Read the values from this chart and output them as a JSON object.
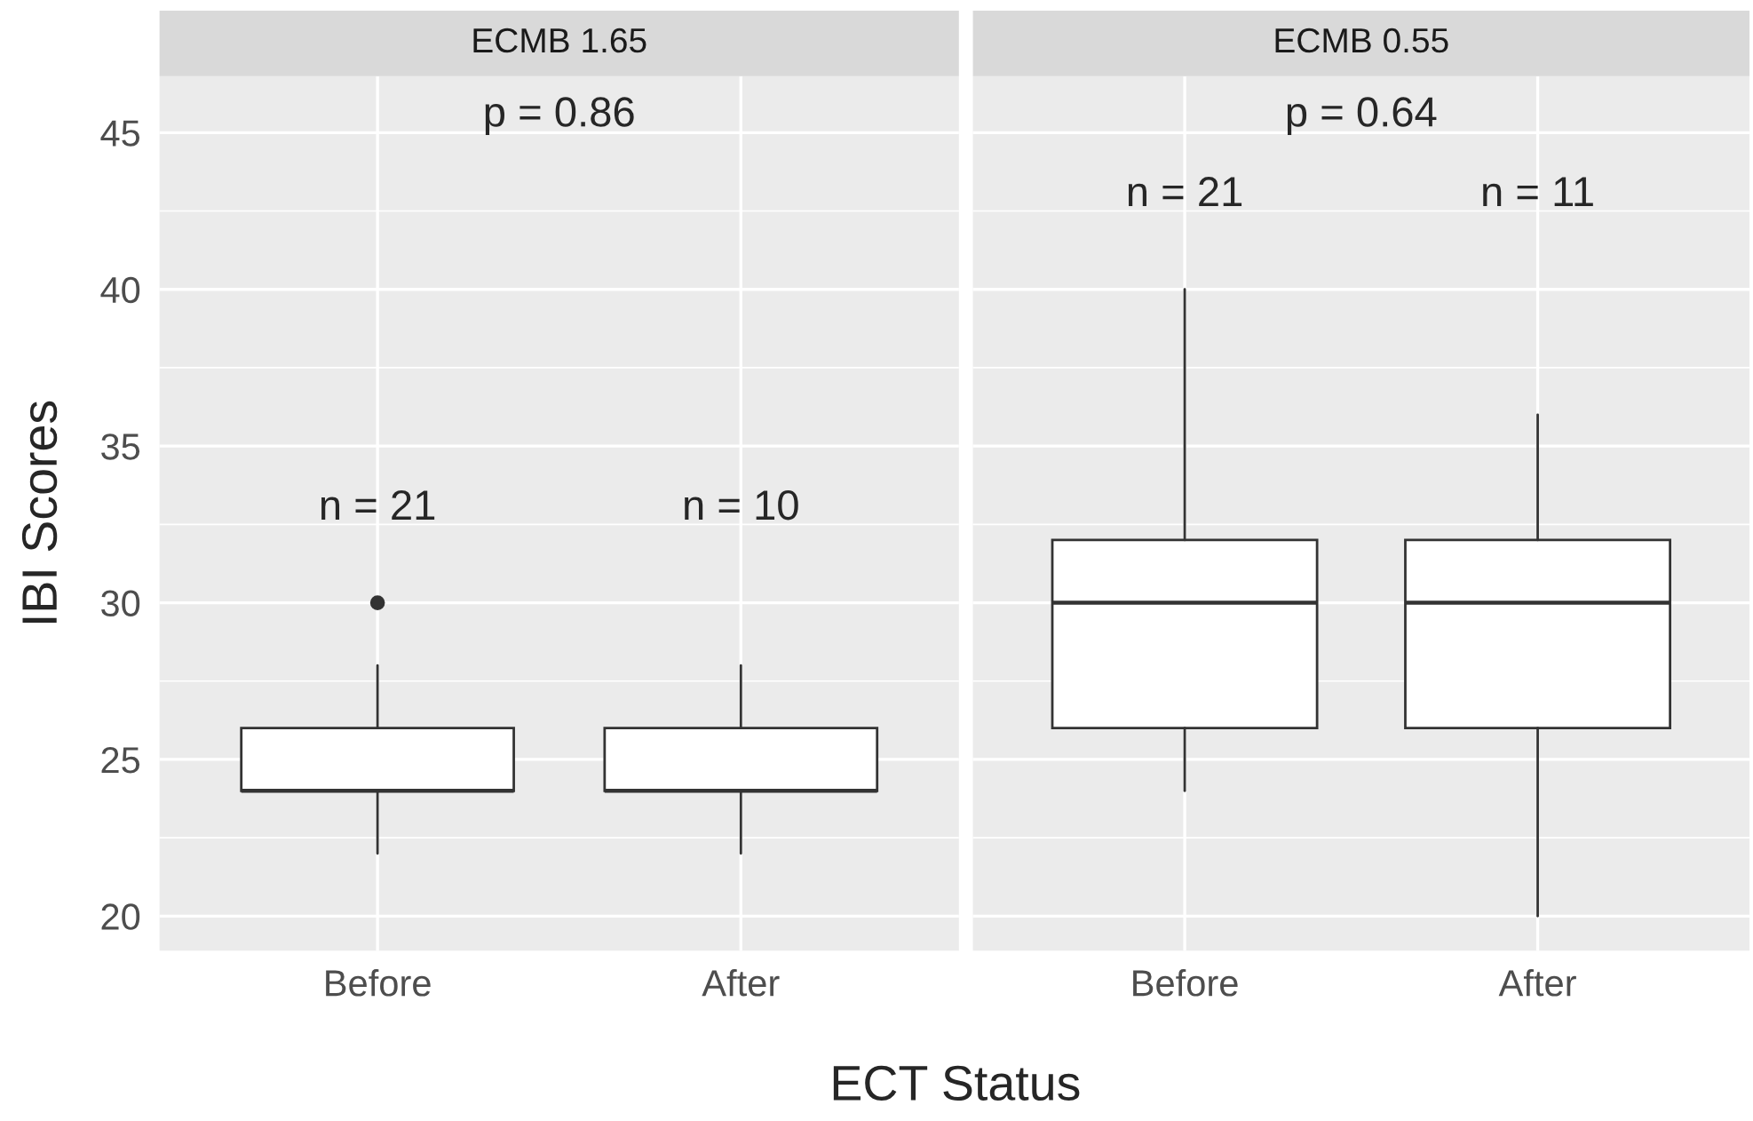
{
  "chart_data": [
    {
      "type": "box",
      "title": "ECMB 1.65",
      "xlabel": "ECT Status",
      "ylabel": "IBI Scores",
      "categories": [
        "Before",
        "After"
      ],
      "boxes": [
        {
          "low": 22,
          "q1": 24,
          "median": 24,
          "q3": 26,
          "high": 28,
          "outliers": [
            30
          ]
        },
        {
          "low": 22,
          "q1": 24,
          "median": 24,
          "q3": 26,
          "high": 28
        }
      ],
      "ylim": [
        18.9,
        46.8
      ],
      "yticks": [
        20,
        25,
        30,
        35,
        40,
        45
      ],
      "grid": true,
      "annotations": [
        "p = 0.86",
        "n = 21",
        "n = 10"
      ]
    },
    {
      "type": "box",
      "title": "ECMB 0.55",
      "categories": [
        "Before",
        "After"
      ],
      "boxes": [
        {
          "low": 24,
          "q1": 26,
          "median": 30,
          "q3": 32,
          "high": 40
        },
        {
          "low": 20,
          "q1": 26,
          "median": 30,
          "q3": 32,
          "high": 36
        }
      ],
      "ylim": [
        18.9,
        46.8
      ],
      "yticks": [
        20,
        25,
        30,
        35,
        40,
        45
      ],
      "grid": true,
      "tick_labels": "x",
      "annotations": [
        "p = 0.64",
        "n = 21",
        "n = 11"
      ]
    }
  ]
}
